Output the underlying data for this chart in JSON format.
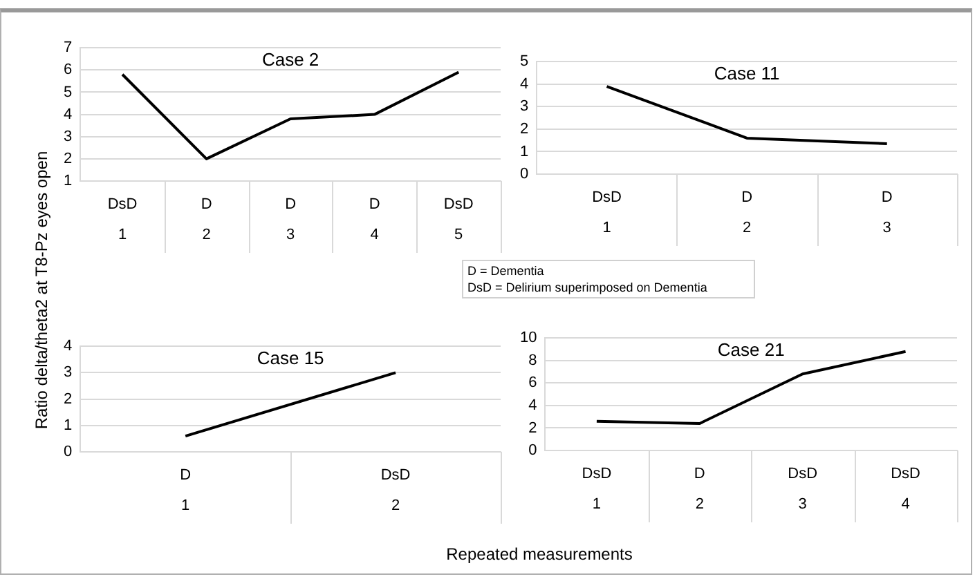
{
  "chart_data": [
    {
      "type": "line",
      "title": "Case 2",
      "ylabel": "Ratio delta/theta2 at T8-Pz eyes open",
      "xlabel": "Repeated measurements",
      "annotations": [
        "D = Dementia",
        "DsD = Delirium superimposed on Dementia"
      ],
      "categories": [
        "DsD\n1",
        "D\n2",
        "D\n3",
        "D\n4",
        "DsD\n5"
      ],
      "values": [
        5.8,
        2.0,
        3.8,
        4.0,
        5.9
      ],
      "color": "#000000",
      "ylim": [
        1,
        7
      ],
      "yticks": [
        1,
        2,
        3,
        4,
        5,
        6,
        7
      ],
      "grid": "y",
      "marker": "none"
    },
    {
      "type": "line",
      "title": "Case 11",
      "categories": [
        "DsD\n1",
        "D\n2",
        "D\n3"
      ],
      "values": [
        3.9,
        1.6,
        1.35
      ],
      "color": "#000000",
      "ylim": [
        0,
        5
      ],
      "yticks": [
        0,
        1,
        2,
        3,
        4,
        5
      ],
      "grid": "y",
      "marker": "none"
    },
    {
      "type": "line",
      "title": "Case 15",
      "categories": [
        "D\n1",
        "DsD\n2"
      ],
      "values": [
        0.6,
        3.0
      ],
      "color": "#000000",
      "ylim": [
        0,
        4
      ],
      "yticks": [
        0,
        1,
        2,
        3,
        4
      ],
      "grid": "y",
      "marker": "none"
    },
    {
      "type": "line",
      "title": "Case 21",
      "categories": [
        "DsD\n1",
        "D\n2",
        "DsD\n3",
        "DsD\n4"
      ],
      "values": [
        2.6,
        2.4,
        6.8,
        8.8
      ],
      "color": "#000000",
      "ylim": [
        0,
        10
      ],
      "yticks": [
        0,
        2,
        4,
        6,
        8,
        10
      ],
      "grid": "y",
      "marker": "none"
    }
  ]
}
